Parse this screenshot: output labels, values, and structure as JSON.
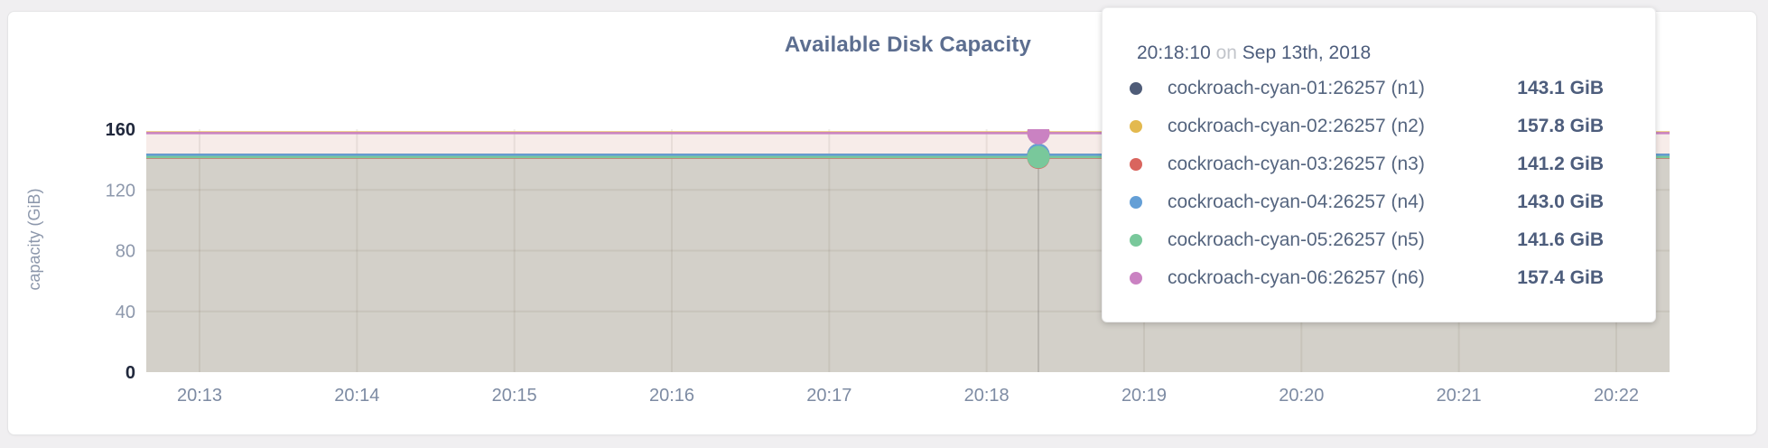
{
  "card": {
    "background": "#ffffff"
  },
  "chart_data": {
    "type": "area",
    "title": "Available Disk Capacity",
    "ylabel": "capacity (GiB)",
    "ylim": [
      0,
      160
    ],
    "grid": true,
    "yticks": [
      {
        "label": "160",
        "value": 160,
        "emphasis": true
      },
      {
        "label": "120",
        "value": 120,
        "emphasis": false
      },
      {
        "label": "80",
        "value": 80,
        "emphasis": false
      },
      {
        "label": "40",
        "value": 40,
        "emphasis": false
      },
      {
        "label": "0",
        "value": 0,
        "emphasis": true
      }
    ],
    "xticks": [
      "20:13",
      "20:14",
      "20:15",
      "20:16",
      "20:17",
      "20:18",
      "20:19",
      "20:20",
      "20:21",
      "20:22"
    ],
    "series": [
      {
        "name": "cockroach-cyan-01:26257 (n1)",
        "value_gib": 143.1,
        "display": "143.1 GiB",
        "color": "#4f5c78"
      },
      {
        "name": "cockroach-cyan-02:26257 (n2)",
        "value_gib": 157.8,
        "display": "157.8 GiB",
        "color": "#e3b94f"
      },
      {
        "name": "cockroach-cyan-03:26257 (n3)",
        "value_gib": 141.2,
        "display": "141.2 GiB",
        "color": "#d9655e"
      },
      {
        "name": "cockroach-cyan-04:26257 (n4)",
        "value_gib": 143.0,
        "display": "143.0 GiB",
        "color": "#649fd6"
      },
      {
        "name": "cockroach-cyan-05:26257 (n5)",
        "value_gib": 141.6,
        "display": "141.6 GiB",
        "color": "#79c89b"
      },
      {
        "name": "cockroach-cyan-06:26257 (n6)",
        "value_gib": 157.4,
        "display": "157.4 GiB",
        "color": "#ca82c2"
      }
    ],
    "fills": [
      {
        "from": 157.4,
        "to": 143.1,
        "color": "#f7ece9"
      },
      {
        "from": 143.1,
        "to": 0,
        "color": "#d3d0c9"
      }
    ],
    "hover": {
      "time": "20:18:10"
    },
    "legend_position": "tooltip"
  },
  "tooltip": {
    "time": "20:18:10",
    "conj": " on ",
    "date": "Sep 13th, 2018"
  },
  "colors": {
    "grid": "rgba(90,80,60,0.09)",
    "hover_line": "rgba(60,60,60,0.18)",
    "ytick_emphasis": "#20283c",
    "ytick_normal": "#8d98ac",
    "xtick": "#7d8ba3"
  }
}
